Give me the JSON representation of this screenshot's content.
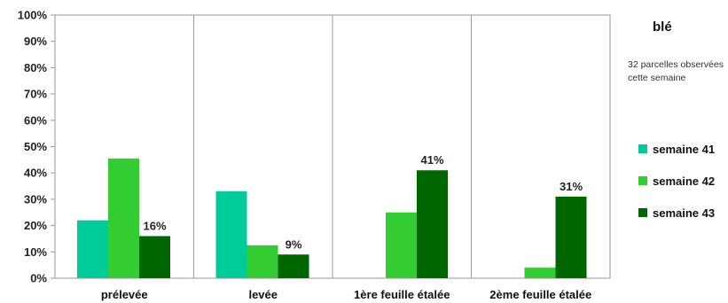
{
  "chart_data": {
    "type": "bar",
    "title": "blé",
    "note": "32 parcelles observées cette semaine",
    "categories": [
      "prélevée",
      "levée",
      "1ère feuille étalée",
      "2ème feuille étalée"
    ],
    "series": [
      {
        "name": "semaine 41",
        "color": "#00cc99",
        "values": [
          22,
          33,
          0,
          0
        ]
      },
      {
        "name": "semaine 42",
        "color": "#33cc33",
        "values": [
          45.5,
          12.5,
          25,
          4
        ]
      },
      {
        "name": "semaine 43",
        "color": "#006600",
        "values": [
          16,
          9,
          41,
          31
        ],
        "labels": [
          "16%",
          "9%",
          "41%",
          "31%"
        ]
      }
    ],
    "yticks": [
      "0%",
      "10%",
      "20%",
      "30%",
      "40%",
      "50%",
      "60%",
      "70%",
      "80%",
      "90%",
      "100%"
    ],
    "ylim": [
      0,
      100
    ],
    "legend_position": "right",
    "grid": false
  }
}
